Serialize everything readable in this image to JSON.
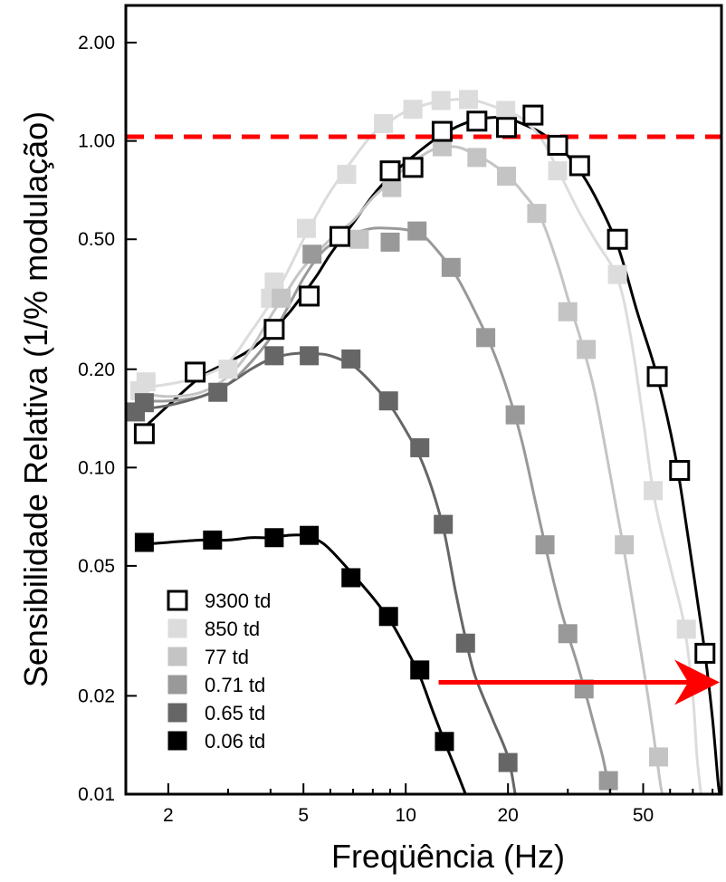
{
  "chart_data": {
    "type": "line",
    "xlabel": "Freqüência (Hz)",
    "ylabel": "Sensibilidade Relativa (1/% modulação)",
    "x_scale": "log",
    "y_scale": "log",
    "xlim": [
      1.5,
      85
    ],
    "ylim": [
      0.01,
      2.6
    ],
    "x_ticks": [
      {
        "value": 2,
        "label": "2"
      },
      {
        "value": 5,
        "label": "5"
      },
      {
        "value": 10,
        "label": "10"
      },
      {
        "value": 20,
        "label": "20"
      },
      {
        "value": 50,
        "label": "50"
      }
    ],
    "y_ticks": [
      {
        "value": 2.0,
        "label": "2.00"
      },
      {
        "value": 1.0,
        "label": "1.00"
      },
      {
        "value": 0.5,
        "label": "0.50"
      },
      {
        "value": 0.2,
        "label": "0.20"
      },
      {
        "value": 0.1,
        "label": "0.10"
      },
      {
        "value": 0.05,
        "label": "0.05"
      },
      {
        "value": 0.02,
        "label": "0.02"
      },
      {
        "value": 0.01,
        "label": "0.01"
      }
    ],
    "reference_line": {
      "y": 1.03,
      "color": "#ff0000",
      "style": "dashed"
    },
    "arrow": {
      "y": 0.022,
      "x_from": 12.5,
      "x_to": 80,
      "color": "#ff0000"
    },
    "legend_position": "bottom-left",
    "series": [
      {
        "name": "9300 td",
        "marker": "open-square",
        "color": "#000000",
        "points": [
          [
            1.7,
            0.127
          ],
          [
            2.4,
            0.196
          ],
          [
            4.1,
            0.265
          ],
          [
            5.2,
            0.335
          ],
          [
            6.4,
            0.51
          ],
          [
            9.0,
            0.81
          ],
          [
            10.5,
            0.83
          ],
          [
            12.8,
            1.07
          ],
          [
            16.2,
            1.15
          ],
          [
            19.8,
            1.1
          ],
          [
            23.7,
            1.2
          ],
          [
            28.0,
            0.97
          ],
          [
            32.5,
            0.84
          ],
          [
            42.0,
            0.5
          ],
          [
            55.0,
            0.19
          ],
          [
            64.0,
            0.098
          ],
          [
            76.0,
            0.027
          ]
        ],
        "curve": [
          [
            1.6,
            0.125
          ],
          [
            2.0,
            0.155
          ],
          [
            2.5,
            0.19
          ],
          [
            3.0,
            0.21
          ],
          [
            3.5,
            0.23
          ],
          [
            4.0,
            0.26
          ],
          [
            4.5,
            0.295
          ],
          [
            5.0,
            0.34
          ],
          [
            5.5,
            0.39
          ],
          [
            6.0,
            0.45
          ],
          [
            7.0,
            0.56
          ],
          [
            8.0,
            0.68
          ],
          [
            9.0,
            0.78
          ],
          [
            10.0,
            0.86
          ],
          [
            12.0,
            1.0
          ],
          [
            14.0,
            1.1
          ],
          [
            16.0,
            1.16
          ],
          [
            18.0,
            1.18
          ],
          [
            20.0,
            1.17
          ],
          [
            22.0,
            1.13
          ],
          [
            25.0,
            1.06
          ],
          [
            28.0,
            0.97
          ],
          [
            32.0,
            0.83
          ],
          [
            36.0,
            0.68
          ],
          [
            42.0,
            0.48
          ],
          [
            48.0,
            0.3
          ],
          [
            55.0,
            0.19
          ],
          [
            62.0,
            0.11
          ],
          [
            68.0,
            0.06
          ],
          [
            72.0,
            0.04
          ],
          [
            76.0,
            0.027
          ],
          [
            80.0,
            0.017
          ],
          [
            83.0,
            0.011
          ],
          [
            84.0,
            0.01
          ]
        ]
      },
      {
        "name": "850 td",
        "marker": "filled-square",
        "color": "#dcdcdc",
        "points": [
          [
            1.65,
            0.172
          ],
          [
            1.72,
            0.183
          ],
          [
            3.0,
            0.2
          ],
          [
            4.0,
            0.33
          ],
          [
            4.1,
            0.37
          ],
          [
            5.1,
            0.54
          ],
          [
            6.7,
            0.79
          ],
          [
            8.6,
            1.13
          ],
          [
            10.5,
            1.25
          ],
          [
            12.7,
            1.33
          ],
          [
            15.3,
            1.34
          ],
          [
            19.7,
            1.24
          ],
          [
            28.0,
            0.81
          ],
          [
            42.0,
            0.39
          ],
          [
            53.5,
            0.085
          ],
          [
            67.0,
            0.032
          ]
        ],
        "curve": [
          [
            1.6,
            0.175
          ],
          [
            2.0,
            0.18
          ],
          [
            2.5,
            0.19
          ],
          [
            3.0,
            0.21
          ],
          [
            3.5,
            0.26
          ],
          [
            4.0,
            0.32
          ],
          [
            4.5,
            0.4
          ],
          [
            5.0,
            0.5
          ],
          [
            5.5,
            0.6
          ],
          [
            6.0,
            0.7
          ],
          [
            7.0,
            0.88
          ],
          [
            8.0,
            1.05
          ],
          [
            9.0,
            1.15
          ],
          [
            10.0,
            1.23
          ],
          [
            12.0,
            1.31
          ],
          [
            14.0,
            1.34
          ],
          [
            16.0,
            1.33
          ],
          [
            18.0,
            1.28
          ],
          [
            20.0,
            1.23
          ],
          [
            22.0,
            1.17
          ],
          [
            25.0,
            1.02
          ],
          [
            28.0,
            0.82
          ],
          [
            32.0,
            0.62
          ],
          [
            36.0,
            0.5
          ],
          [
            42.0,
            0.38
          ],
          [
            46.0,
            0.25
          ],
          [
            50.0,
            0.14
          ],
          [
            54.0,
            0.08
          ],
          [
            60.0,
            0.05
          ],
          [
            66.0,
            0.033
          ],
          [
            70.0,
            0.02
          ],
          [
            72.0,
            0.013
          ],
          [
            74.0,
            0.01
          ]
        ]
      },
      {
        "name": "77 td",
        "marker": "filled-square",
        "color": "#c4c4c4",
        "points": [
          [
            4.3,
            0.33
          ],
          [
            7.3,
            0.5
          ],
          [
            9.1,
            0.72
          ],
          [
            12.8,
            0.96
          ],
          [
            16.2,
            0.89
          ],
          [
            19.8,
            0.78
          ],
          [
            24.3,
            0.6
          ],
          [
            30.0,
            0.3
          ],
          [
            34.0,
            0.23
          ],
          [
            44.0,
            0.058
          ],
          [
            55.5,
            0.013
          ]
        ],
        "curve": [
          [
            1.6,
            0.17
          ],
          [
            2.0,
            0.165
          ],
          [
            2.5,
            0.17
          ],
          [
            3.0,
            0.19
          ],
          [
            3.5,
            0.23
          ],
          [
            4.0,
            0.29
          ],
          [
            4.5,
            0.35
          ],
          [
            5.0,
            0.41
          ],
          [
            6.0,
            0.5
          ],
          [
            7.0,
            0.57
          ],
          [
            8.0,
            0.67
          ],
          [
            9.0,
            0.75
          ],
          [
            10.0,
            0.83
          ],
          [
            12.0,
            0.94
          ],
          [
            14.0,
            0.96
          ],
          [
            16.0,
            0.91
          ],
          [
            18.0,
            0.85
          ],
          [
            20.0,
            0.78
          ],
          [
            22.0,
            0.7
          ],
          [
            25.0,
            0.58
          ],
          [
            28.0,
            0.42
          ],
          [
            30.0,
            0.33
          ],
          [
            33.0,
            0.24
          ],
          [
            36.0,
            0.17
          ],
          [
            40.0,
            0.095
          ],
          [
            44.0,
            0.055
          ],
          [
            48.0,
            0.032
          ],
          [
            52.0,
            0.019
          ],
          [
            56.0,
            0.011
          ],
          [
            57.0,
            0.01
          ]
        ]
      },
      {
        "name": "0.71 td",
        "marker": "filled-square",
        "color": "#999999",
        "points": [
          [
            5.3,
            0.45
          ],
          [
            9.0,
            0.49
          ],
          [
            10.8,
            0.53
          ],
          [
            13.6,
            0.41
          ],
          [
            17.2,
            0.25
          ],
          [
            21.0,
            0.145
          ],
          [
            25.7,
            0.058
          ],
          [
            30.0,
            0.031
          ],
          [
            33.5,
            0.021
          ],
          [
            39.5,
            0.011
          ]
        ],
        "curve": [
          [
            1.6,
            0.16
          ],
          [
            2.0,
            0.16
          ],
          [
            2.5,
            0.165
          ],
          [
            3.0,
            0.18
          ],
          [
            3.5,
            0.21
          ],
          [
            4.0,
            0.25
          ],
          [
            4.5,
            0.31
          ],
          [
            5.0,
            0.38
          ],
          [
            5.5,
            0.44
          ],
          [
            6.0,
            0.48
          ],
          [
            7.0,
            0.52
          ],
          [
            8.0,
            0.54
          ],
          [
            9.0,
            0.54
          ],
          [
            10.0,
            0.535
          ],
          [
            11.0,
            0.52
          ],
          [
            12.0,
            0.48
          ],
          [
            14.0,
            0.39
          ],
          [
            16.0,
            0.3
          ],
          [
            18.0,
            0.23
          ],
          [
            20.0,
            0.17
          ],
          [
            22.0,
            0.12
          ],
          [
            24.0,
            0.08
          ],
          [
            26.0,
            0.055
          ],
          [
            28.0,
            0.04
          ],
          [
            30.0,
            0.031
          ],
          [
            32.0,
            0.025
          ],
          [
            34.0,
            0.02
          ],
          [
            36.0,
            0.016
          ],
          [
            38.0,
            0.013
          ],
          [
            40.0,
            0.01
          ]
        ]
      },
      {
        "name": "0.65 td",
        "marker": "filled-square",
        "color": "#666666",
        "points": [
          [
            1.6,
            0.148
          ],
          [
            1.7,
            0.158
          ],
          [
            2.8,
            0.17
          ],
          [
            4.1,
            0.22
          ],
          [
            5.2,
            0.22
          ],
          [
            6.9,
            0.215
          ],
          [
            8.9,
            0.16
          ],
          [
            11.0,
            0.115
          ],
          [
            12.9,
            0.067
          ],
          [
            15.0,
            0.029
          ],
          [
            20.0,
            0.0125
          ]
        ],
        "curve": [
          [
            1.6,
            0.15
          ],
          [
            2.0,
            0.155
          ],
          [
            2.5,
            0.165
          ],
          [
            3.0,
            0.18
          ],
          [
            3.5,
            0.2
          ],
          [
            4.0,
            0.215
          ],
          [
            4.5,
            0.222
          ],
          [
            5.0,
            0.224
          ],
          [
            5.5,
            0.223
          ],
          [
            6.0,
            0.22
          ],
          [
            7.0,
            0.205
          ],
          [
            8.0,
            0.18
          ],
          [
            9.0,
            0.155
          ],
          [
            10.0,
            0.13
          ],
          [
            11.0,
            0.108
          ],
          [
            12.0,
            0.085
          ],
          [
            13.0,
            0.063
          ],
          [
            14.0,
            0.042
          ],
          [
            15.0,
            0.03
          ],
          [
            16.0,
            0.023
          ],
          [
            18.0,
            0.017
          ],
          [
            20.0,
            0.013
          ],
          [
            21.0,
            0.01
          ]
        ]
      },
      {
        "name": "0.06 td",
        "marker": "filled-square",
        "color": "#000000",
        "points": [
          [
            1.7,
            0.059
          ],
          [
            2.7,
            0.06
          ],
          [
            4.1,
            0.061
          ],
          [
            5.2,
            0.062
          ],
          [
            6.9,
            0.046
          ],
          [
            8.9,
            0.035
          ],
          [
            11.0,
            0.024
          ],
          [
            13.0,
            0.0145
          ]
        ],
        "curve": [
          [
            1.6,
            0.058
          ],
          [
            2.0,
            0.059
          ],
          [
            2.5,
            0.06
          ],
          [
            3.0,
            0.06
          ],
          [
            3.5,
            0.061
          ],
          [
            4.0,
            0.061
          ],
          [
            4.5,
            0.062
          ],
          [
            5.0,
            0.062
          ],
          [
            5.5,
            0.06
          ],
          [
            6.0,
            0.056
          ],
          [
            7.0,
            0.047
          ],
          [
            8.0,
            0.04
          ],
          [
            9.0,
            0.034
          ],
          [
            10.0,
            0.028
          ],
          [
            11.0,
            0.023
          ],
          [
            12.0,
            0.018
          ],
          [
            13.0,
            0.0145
          ],
          [
            14.0,
            0.012
          ],
          [
            15.0,
            0.01
          ]
        ]
      }
    ]
  }
}
